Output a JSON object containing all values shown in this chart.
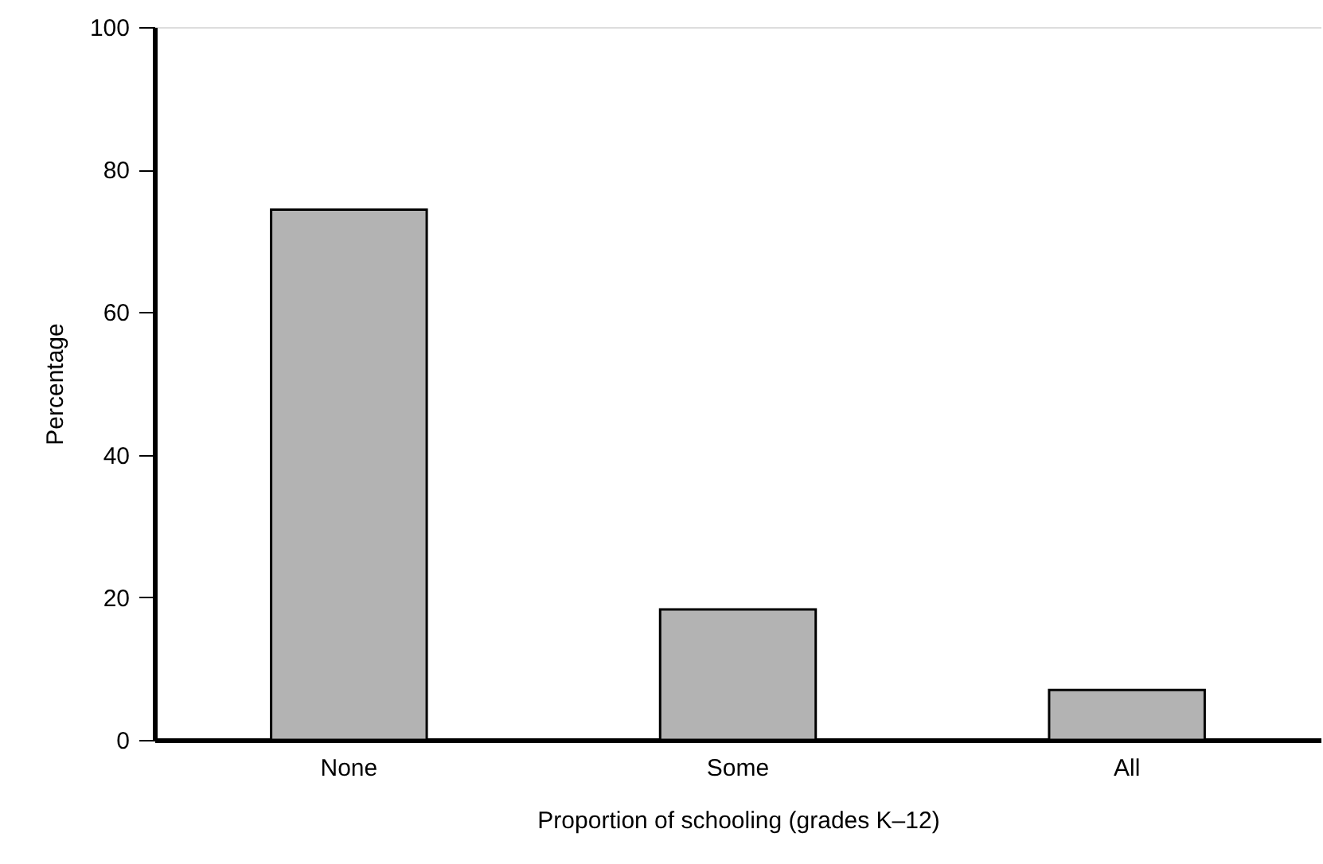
{
  "chart_data": {
    "type": "bar",
    "xlabel": "Proportion of schooling (grades K–12)",
    "ylabel": "Percentage",
    "categories": [
      "None",
      "Some",
      "All"
    ],
    "values": [
      74.4,
      18.3,
      7.0
    ],
    "color": "#b3b3b3",
    "ylim": [
      0,
      100
    ],
    "yticks": [
      0,
      20,
      40,
      60,
      80,
      100
    ],
    "grid": false
  }
}
